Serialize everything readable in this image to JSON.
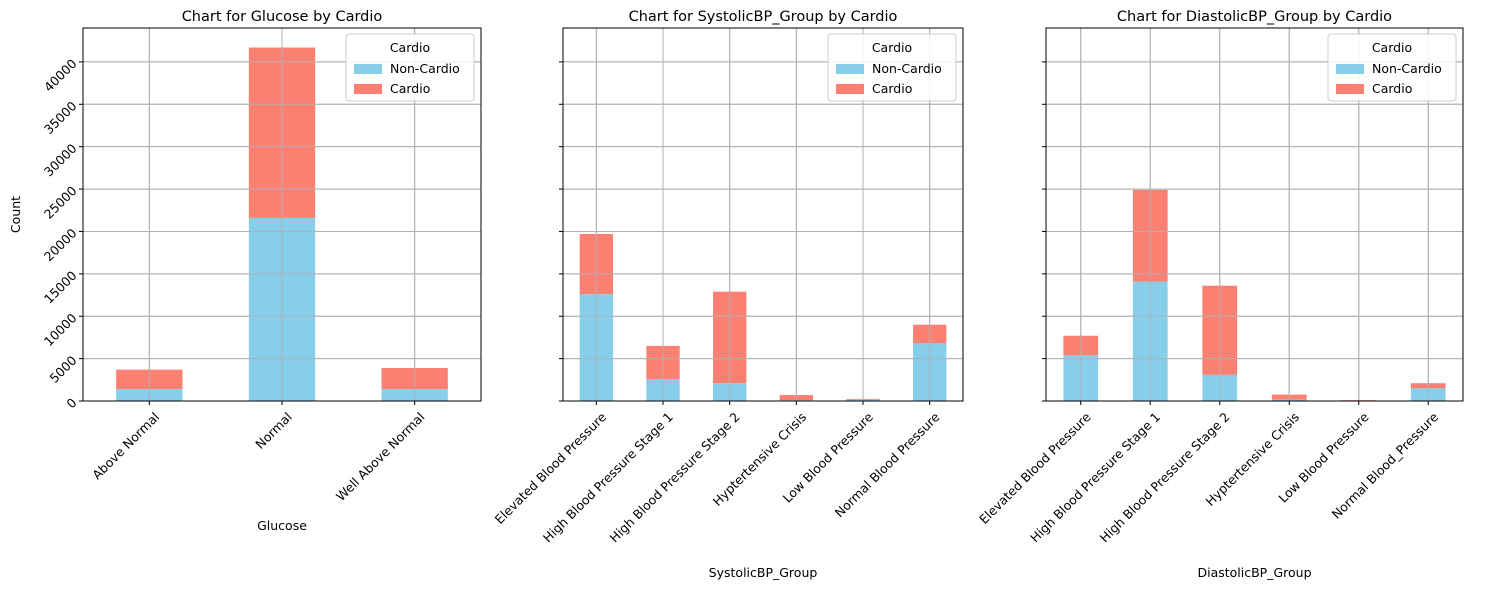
{
  "colors": {
    "non_cardio": "#87CEEB",
    "cardio": "#FA8072",
    "grid": "#b0b0b0"
  },
  "chart_data": [
    {
      "type": "bar",
      "stacked": true,
      "title": "Chart for Glucose by Cardio",
      "xlabel": "Glucose",
      "ylabel": "Count",
      "categories": [
        "Above Normal",
        "Normal",
        "Well Above Normal"
      ],
      "series": [
        {
          "name": "Non-Cardio",
          "values": [
            1400,
            21600,
            1400
          ]
        },
        {
          "name": "Cardio",
          "values": [
            2300,
            20100,
            2500
          ]
        }
      ],
      "ylim": [
        0,
        44000
      ],
      "yticks": [
        0,
        5000,
        10000,
        15000,
        20000,
        25000,
        30000,
        35000,
        40000
      ],
      "legend": {
        "title": "Cardio",
        "placement": "top-right"
      },
      "grid": true
    },
    {
      "type": "bar",
      "stacked": true,
      "title": "Chart for SystolicBP_Group by Cardio",
      "xlabel": "SystolicBP_Group",
      "ylabel": "",
      "categories": [
        "Elevated Blood Pressure",
        "High Blood Pressure Stage 1",
        "High Blood Pressure Stage 2",
        "Hyptertensive Crisis",
        "Low Blood Pressure",
        "Normal Blood Pressure"
      ],
      "series": [
        {
          "name": "Non-Cardio",
          "values": [
            12600,
            2600,
            2100,
            100,
            150,
            6800
          ]
        },
        {
          "name": "Cardio",
          "values": [
            7100,
            3900,
            10800,
            600,
            100,
            2200
          ]
        }
      ],
      "ylim": [
        0,
        44000
      ],
      "yticks": [
        0,
        5000,
        10000,
        15000,
        20000,
        25000,
        30000,
        35000,
        40000
      ],
      "legend": {
        "title": "Cardio",
        "placement": "top-right"
      },
      "grid": true
    },
    {
      "type": "bar",
      "stacked": true,
      "title": "Chart for DiastolicBP_Group by Cardio",
      "xlabel": "DiastolicBP_Group",
      "ylabel": "",
      "categories": [
        "Elevated Blood Pressure",
        "High Blood Pressure Stage 1",
        "High Blood Pressure Stage 2",
        "Hyptertensive Crisis",
        "Low Blood Pressure",
        "Normal Blood_Pressure"
      ],
      "series": [
        {
          "name": "Non-Cardio",
          "values": [
            5400,
            14100,
            3100,
            150,
            60,
            1500
          ]
        },
        {
          "name": "Cardio",
          "values": [
            2300,
            10800,
            10500,
            600,
            40,
            600
          ]
        }
      ],
      "ylim": [
        0,
        44000
      ],
      "yticks": [
        0,
        5000,
        10000,
        15000,
        20000,
        25000,
        30000,
        35000,
        40000
      ],
      "legend": {
        "title": "Cardio",
        "placement": "top-right"
      },
      "grid": true
    }
  ]
}
